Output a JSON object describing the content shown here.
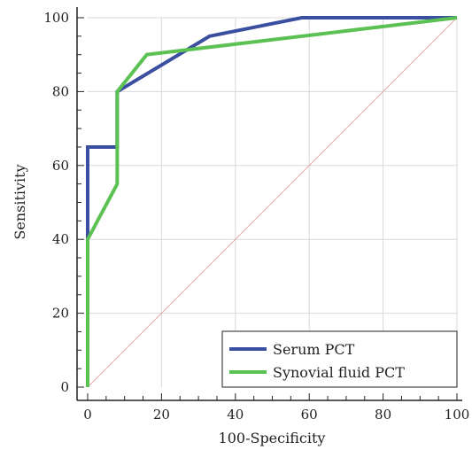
{
  "chart_data": {
    "type": "line",
    "xlabel": "100-Specificity",
    "ylabel": "Sensitivity",
    "xlim": [
      0,
      100
    ],
    "ylim": [
      0,
      100
    ],
    "xticks": [
      "0",
      "20",
      "40",
      "60",
      "80",
      "100"
    ],
    "yticks": [
      "0",
      "20",
      "40",
      "60",
      "80",
      "100"
    ],
    "grid": true,
    "legend_position": "bottom-right",
    "reference_line": {
      "from": [
        0,
        0
      ],
      "to": [
        100,
        100
      ],
      "color": "#e8a6ad"
    },
    "series": [
      {
        "name": "Serum PCT",
        "color": "#3b4fa0",
        "points": [
          [
            0,
            0
          ],
          [
            0,
            40
          ],
          [
            0,
            65
          ],
          [
            8,
            65
          ],
          [
            8,
            80
          ],
          [
            33,
            95
          ],
          [
            58,
            100
          ],
          [
            100,
            100
          ]
        ]
      },
      {
        "name": "Synovial fluid PCT",
        "color": "#5cc153",
        "points": [
          [
            0,
            0
          ],
          [
            0,
            40
          ],
          [
            8,
            55
          ],
          [
            8,
            80
          ],
          [
            16,
            90
          ],
          [
            100,
            100
          ]
        ]
      }
    ]
  }
}
